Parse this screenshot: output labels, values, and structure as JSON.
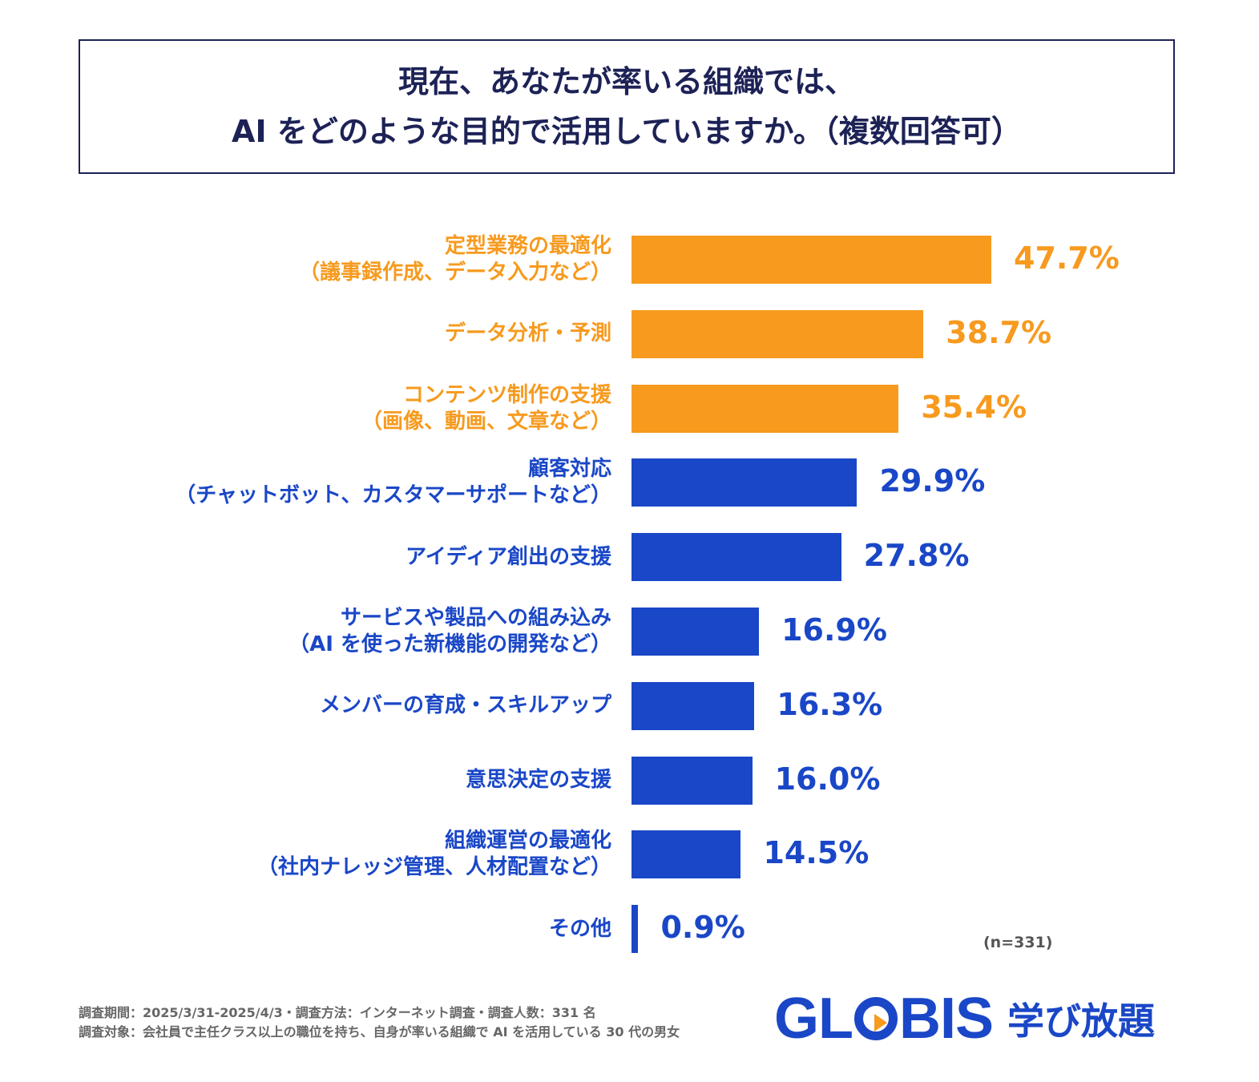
{
  "title": {
    "line1": "現在、あなたが率いる組織では、",
    "line2": "AI をどのような目的で活用していますか。（複数回答可）"
  },
  "colors": {
    "highlight": "#F79A1E",
    "primary": "#1A47C7",
    "title": "#1D2256"
  },
  "chart_data": {
    "type": "bar",
    "orientation": "horizontal",
    "title": "現在、あなたが率いる組織では、AI をどのような目的で活用していますか。（複数回答可）",
    "categories": [
      [
        "定型業務の最適化",
        "（議事録作成、データ入力など）"
      ],
      [
        "データ分析・予測"
      ],
      [
        "コンテンツ制作の支援",
        "（画像、動画、文章など）"
      ],
      [
        "顧客対応",
        "（チャットボット、カスタマーサポートなど）"
      ],
      [
        "アイディア創出の支援"
      ],
      [
        "サービスや製品への組み込み",
        "（AI を使った新機能の開発など）"
      ],
      [
        "メンバーの育成・スキルアップ"
      ],
      [
        "意思決定の支援"
      ],
      [
        "組織運営の最適化",
        "（社内ナレッジ管理、人材配置など）"
      ],
      [
        "その他"
      ]
    ],
    "values": [
      47.7,
      38.7,
      35.4,
      29.9,
      27.8,
      16.9,
      16.3,
      16.0,
      14.5,
      0.9
    ],
    "value_labels": [
      "47.7%",
      "38.7%",
      "35.4%",
      "29.9%",
      "27.8%",
      "16.9%",
      "16.3%",
      "16.0%",
      "14.5%",
      "0.9%"
    ],
    "highlighted_count": 3,
    "xlim": [
      0,
      50
    ],
    "grid": false,
    "sample_size": "(n=331)"
  },
  "footer": {
    "line1": "調査期間：2025/3/31-2025/4/3・調査方法：インターネット調査・調査人数：331 名",
    "line2": "調査対象：会社員で主任クラス以上の職位を持ち、自身が率いる組織で AI を活用している 30 代の男女"
  },
  "logo": {
    "brand": "GLOBIS",
    "product": "学び放題"
  }
}
